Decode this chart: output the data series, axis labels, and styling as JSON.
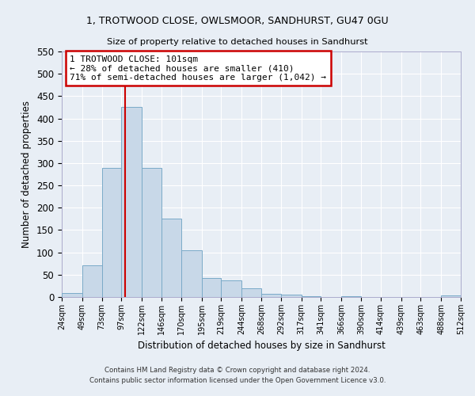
{
  "title": "1, TROTWOOD CLOSE, OWLSMOOR, SANDHURST, GU47 0GU",
  "subtitle": "Size of property relative to detached houses in Sandhurst",
  "xlabel": "Distribution of detached houses by size in Sandhurst",
  "ylabel": "Number of detached properties",
  "bar_color": "#c8d8e8",
  "bar_edge_color": "#7aaac8",
  "background_color": "#e8eef5",
  "grid_color": "#ffffff",
  "annotation_box_color": "#cc0000",
  "vline_color": "#cc0000",
  "bins": [
    24,
    49,
    73,
    97,
    122,
    146,
    170,
    195,
    219,
    244,
    268,
    292,
    317,
    341,
    366,
    390,
    414,
    439,
    463,
    488,
    512
  ],
  "bin_labels": [
    "24sqm",
    "49sqm",
    "73sqm",
    "97sqm",
    "122sqm",
    "146sqm",
    "170sqm",
    "195sqm",
    "219sqm",
    "244sqm",
    "268sqm",
    "292sqm",
    "317sqm",
    "341sqm",
    "366sqm",
    "390sqm",
    "414sqm",
    "439sqm",
    "463sqm",
    "488sqm",
    "512sqm"
  ],
  "counts": [
    8,
    71,
    290,
    425,
    290,
    175,
    105,
    43,
    38,
    20,
    7,
    5,
    1,
    0,
    2,
    0,
    0,
    0,
    0,
    3
  ],
  "ylim": [
    0,
    550
  ],
  "yticks": [
    0,
    50,
    100,
    150,
    200,
    250,
    300,
    350,
    400,
    450,
    500,
    550
  ],
  "vline_x": 101,
  "annotation_title": "1 TROTWOOD CLOSE: 101sqm",
  "annotation_line1": "← 28% of detached houses are smaller (410)",
  "annotation_line2": "71% of semi-detached houses are larger (1,042) →",
  "footer_line1": "Contains HM Land Registry data © Crown copyright and database right 2024.",
  "footer_line2": "Contains public sector information licensed under the Open Government Licence v3.0."
}
